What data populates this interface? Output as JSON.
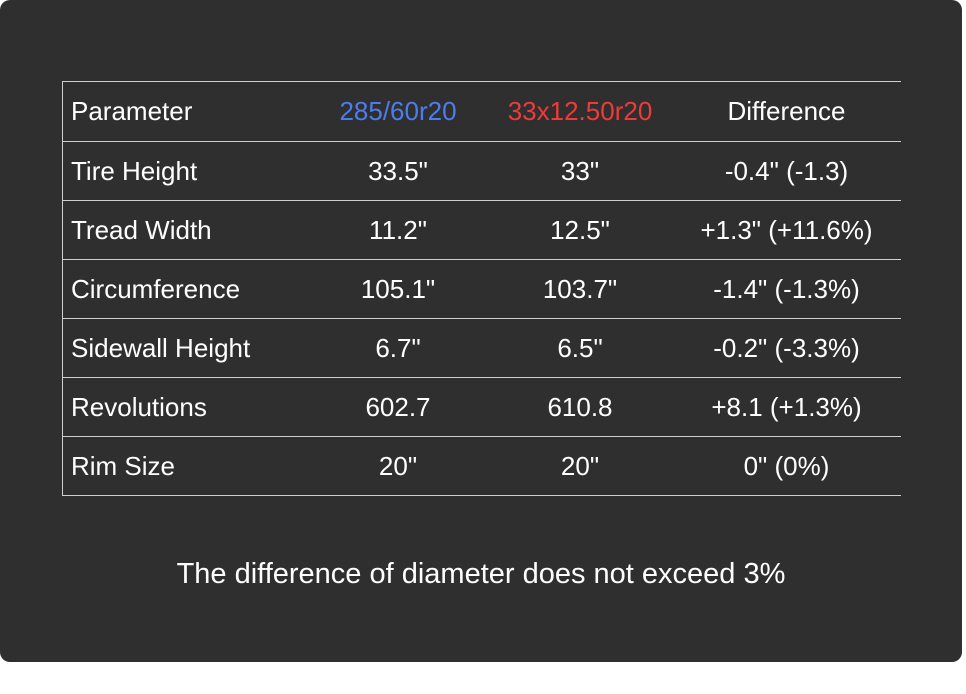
{
  "table": {
    "headers": [
      "Parameter",
      "285/60r20",
      "33x12.50r20",
      "Difference"
    ],
    "header_colors": [
      "#ffffff",
      "#4d7cf0",
      "#f03a3a",
      "#ffffff"
    ],
    "rows": [
      [
        "Tire Height",
        "33.5\"",
        "33\"",
        "-0.4\" (-1.3)"
      ],
      [
        "Tread Width",
        "11.2\"",
        "12.5\"",
        "+1.3\" (+11.6%)"
      ],
      [
        "Circumference",
        "105.1\"",
        "103.7\"",
        "-1.4\" (-1.3%)"
      ],
      [
        "Sidewall Height",
        "6.7\"",
        "6.5\"",
        "-0.2\" (-3.3%)"
      ],
      [
        "Revolutions",
        "602.7",
        "610.8",
        "+8.1 (+1.3%)"
      ],
      [
        "Rim Size",
        "20\"",
        "20\"",
        "0\" (0%)"
      ]
    ]
  },
  "footer": {
    "text": "The difference of diameter does not exceed 3%"
  }
}
